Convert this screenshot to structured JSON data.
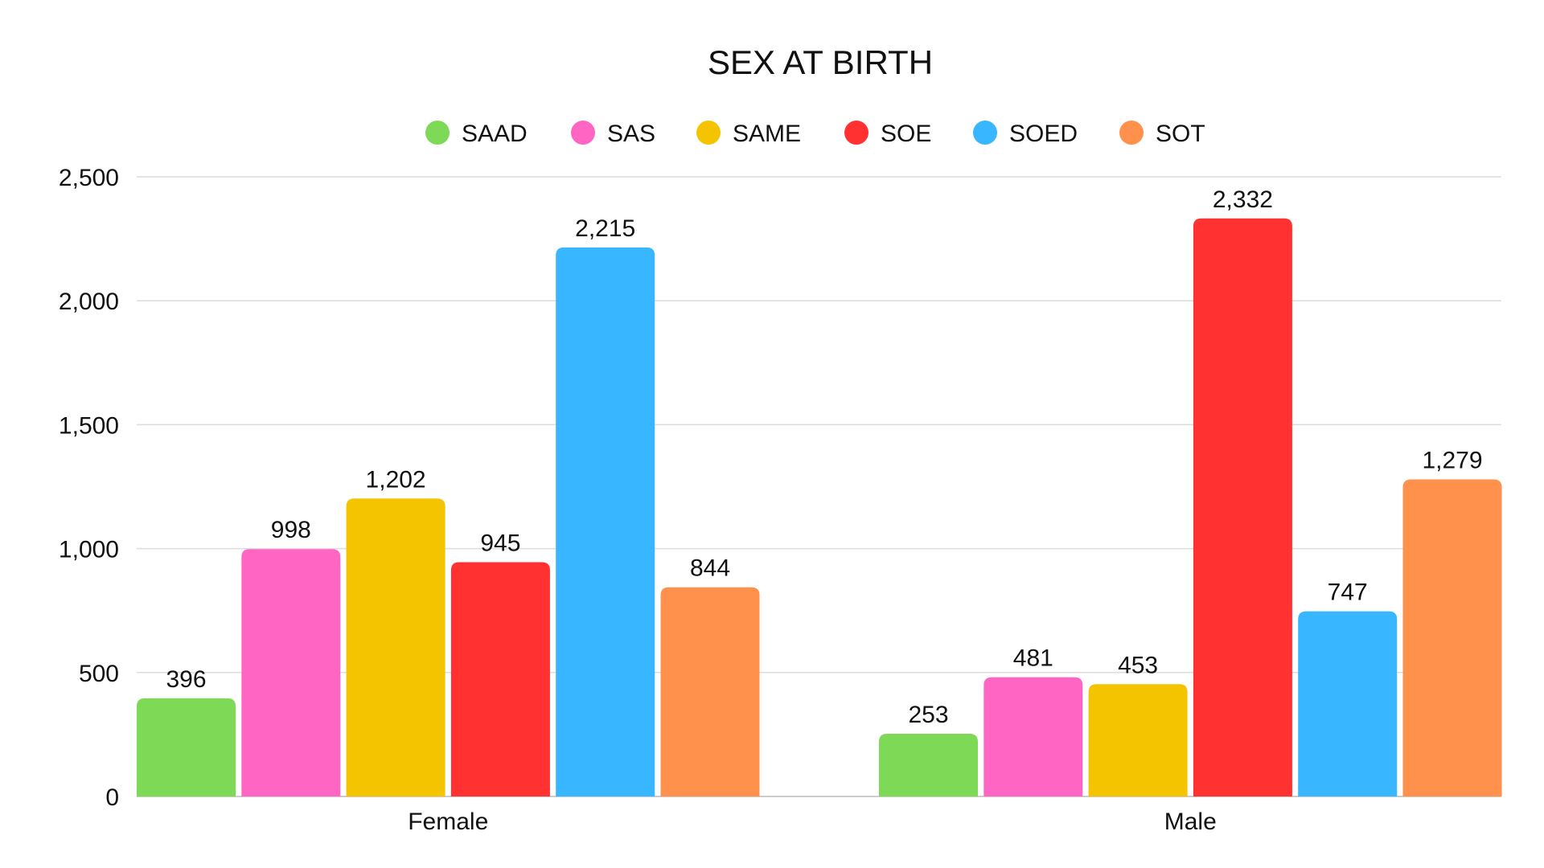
{
  "chart_data": {
    "type": "bar",
    "title": "SEX AT BIRTH",
    "xlabel": "",
    "ylabel": "",
    "categories": [
      "Female",
      "Male"
    ],
    "series": [
      {
        "name": "SAAD",
        "color": "#7ED957",
        "values": [
          396,
          253
        ],
        "labels": [
          "396",
          "253"
        ]
      },
      {
        "name": "SAS",
        "color": "#FF66C4",
        "values": [
          998,
          481
        ],
        "labels": [
          "998",
          "481"
        ]
      },
      {
        "name": "SAME",
        "color": "#F5C400",
        "values": [
          1202,
          453
        ],
        "labels": [
          "1,202",
          "453"
        ]
      },
      {
        "name": "SOE",
        "color": "#FF3131",
        "values": [
          945,
          2332
        ],
        "labels": [
          "945",
          "2,332"
        ]
      },
      {
        "name": "SOED",
        "color": "#38B6FF",
        "values": [
          2215,
          747
        ],
        "labels": [
          "2,215",
          "747"
        ]
      },
      {
        "name": "SOT",
        "color": "#FF914D",
        "values": [
          844,
          1279
        ],
        "labels": [
          "844",
          "1,279"
        ]
      }
    ],
    "ylim": [
      0,
      2500
    ],
    "yticks": [
      0,
      500,
      1000,
      1500,
      2000,
      2500
    ],
    "ytick_labels": [
      "0",
      "500",
      "1,000",
      "1,500",
      "2,000",
      "2,500"
    ],
    "grid": true,
    "legend": "top-center"
  }
}
